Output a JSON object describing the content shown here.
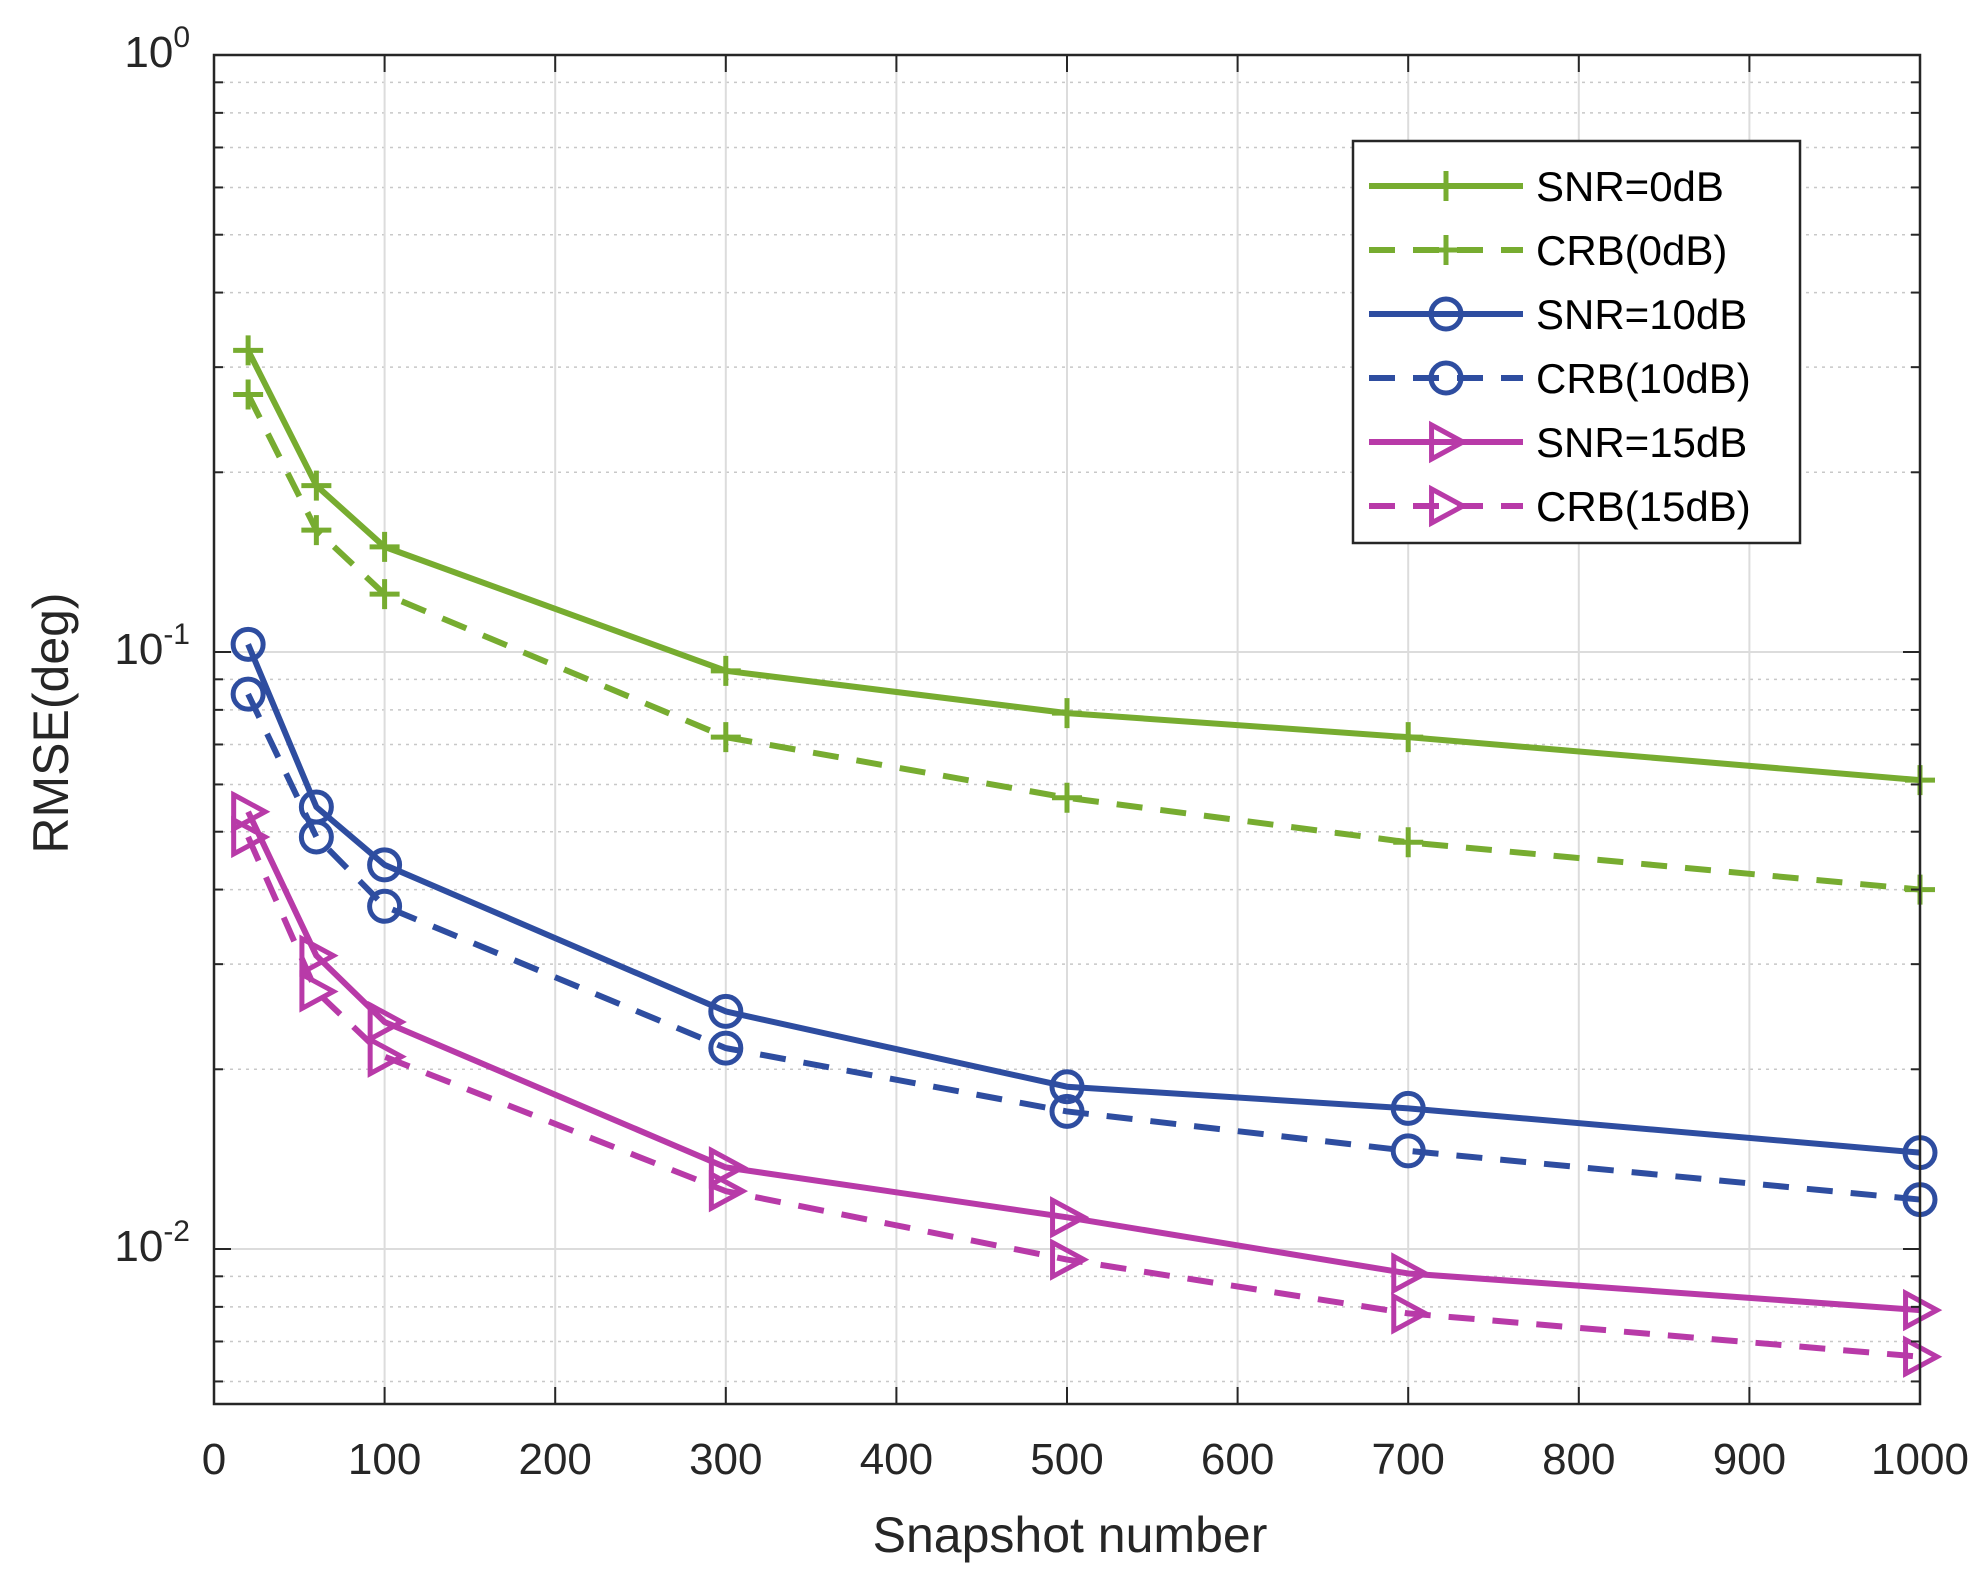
{
  "chart_data": {
    "type": "line",
    "title": "",
    "xlabel": "Snapshot number",
    "ylabel": "RMSE(deg)",
    "xlim": [
      0,
      1000
    ],
    "ylim": [
      0.0055,
      1
    ],
    "yscale": "log",
    "grid": true,
    "legend_position": "top-right",
    "x": [
      20,
      60,
      100,
      300,
      500,
      700,
      1000
    ],
    "x_ticks": [
      {
        "value": 0,
        "label": "0"
      },
      {
        "value": 100,
        "label": "100"
      },
      {
        "value": 200,
        "label": "200"
      },
      {
        "value": 300,
        "label": "300"
      },
      {
        "value": 400,
        "label": "400"
      },
      {
        "value": 500,
        "label": "500"
      },
      {
        "value": 600,
        "label": "600"
      },
      {
        "value": 700,
        "label": "700"
      },
      {
        "value": 800,
        "label": "800"
      },
      {
        "value": 900,
        "label": "900"
      },
      {
        "value": 1000,
        "label": "1000"
      }
    ],
    "y_ticks": [
      {
        "value": 0.01,
        "base": "10",
        "exp": "-2"
      },
      {
        "value": 0.1,
        "base": "10",
        "exp": "-1"
      },
      {
        "value": 1,
        "base": "10",
        "exp": "0"
      }
    ],
    "series": [
      {
        "name": "SNR=0dB",
        "color": "#77AC30",
        "dash": false,
        "marker": "plus",
        "values": [
          0.32,
          0.19,
          0.15,
          0.093,
          0.079,
          0.072,
          0.061
        ]
      },
      {
        "name": "CRB(0dB)",
        "color": "#77AC30",
        "dash": true,
        "marker": "plus",
        "values": [
          0.27,
          0.16,
          0.125,
          0.072,
          0.057,
          0.048,
          0.04
        ]
      },
      {
        "name": "SNR=10dB",
        "color": "#2E4DA0",
        "dash": false,
        "marker": "circle",
        "values": [
          0.103,
          0.055,
          0.044,
          0.025,
          0.0187,
          0.0172,
          0.0145
        ]
      },
      {
        "name": "CRB(10dB)",
        "color": "#2E4DA0",
        "dash": true,
        "marker": "circle",
        "values": [
          0.085,
          0.049,
          0.0375,
          0.0217,
          0.017,
          0.0146,
          0.0121
        ]
      },
      {
        "name": "SNR=15dB",
        "color": "#B83AA8",
        "dash": false,
        "marker": "triangle-right",
        "values": [
          0.054,
          0.031,
          0.024,
          0.0137,
          0.0113,
          0.0091,
          0.0079
        ]
      },
      {
        "name": "CRB(15dB)",
        "color": "#B83AA8",
        "dash": true,
        "marker": "triangle-right",
        "values": [
          0.049,
          0.027,
          0.021,
          0.0125,
          0.0096,
          0.0078,
          0.0066
        ]
      }
    ]
  }
}
